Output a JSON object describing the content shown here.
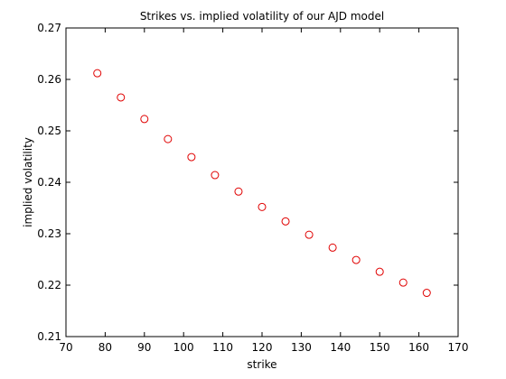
{
  "chart_data": {
    "type": "scatter",
    "title": "Strikes vs. implied volatility of our AJD model",
    "xlabel": "strike",
    "ylabel": "implied volatility",
    "xlim": [
      70,
      170
    ],
    "ylim": [
      0.21,
      0.27
    ],
    "xticks": [
      "70",
      "80",
      "90",
      "100",
      "110",
      "120",
      "130",
      "140",
      "150",
      "160",
      "170"
    ],
    "yticks": [
      "0.21",
      "0.22",
      "0.23",
      "0.24",
      "0.25",
      "0.26",
      "0.27"
    ],
    "grid": false,
    "marker": "circle",
    "marker_color": "#e00000",
    "series": [
      {
        "x": [
          78,
          84,
          90,
          96,
          102,
          108,
          114,
          120,
          126,
          132,
          138,
          144,
          150,
          156,
          162
        ],
        "y": [
          0.2612,
          0.2565,
          0.2523,
          0.2484,
          0.2449,
          0.2414,
          0.2382,
          0.2352,
          0.2324,
          0.2298,
          0.2273,
          0.2249,
          0.2226,
          0.2205,
          0.2185
        ]
      }
    ]
  }
}
